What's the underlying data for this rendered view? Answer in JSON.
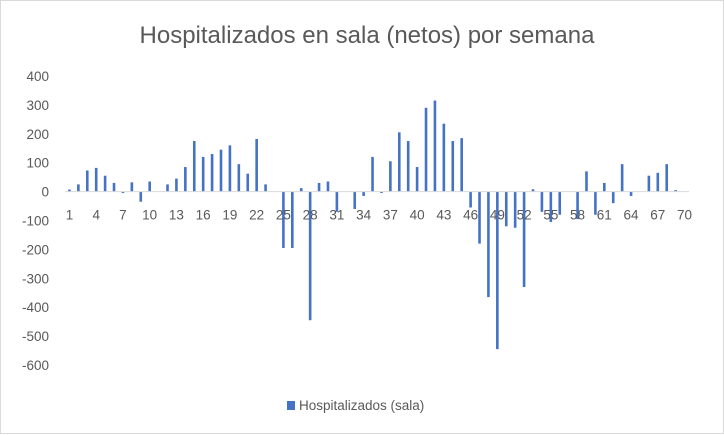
{
  "chart_data": {
    "type": "bar",
    "title": "Hospitalizados en sala (netos) por semana",
    "xlabel": "",
    "ylabel": "",
    "ylim": [
      -600,
      400
    ],
    "yticks": [
      400,
      300,
      200,
      100,
      0,
      -100,
      -200,
      -300,
      -400,
      -500,
      -600
    ],
    "xtick_labels": [
      "1",
      "4",
      "7",
      "10",
      "13",
      "16",
      "19",
      "22",
      "25",
      "28",
      "31",
      "34",
      "37",
      "40",
      "43",
      "46",
      "49",
      "52",
      "55",
      "58",
      "61",
      "64",
      "67",
      "70"
    ],
    "x_tick_step": 3,
    "x_count": 70,
    "grid": false,
    "legend_position": "bottom",
    "bar_color": "#4472c4",
    "series": [
      {
        "name": "Hospitalizados (sala)",
        "values": [
          7,
          25,
          73,
          82,
          55,
          30,
          -5,
          32,
          -35,
          35,
          0,
          25,
          45,
          85,
          175,
          120,
          130,
          145,
          160,
          95,
          62,
          182,
          25,
          0,
          -195,
          -195,
          12,
          -445,
          30,
          35,
          -70,
          0,
          -60,
          -15,
          120,
          -5,
          105,
          205,
          175,
          85,
          290,
          315,
          235,
          175,
          185,
          -55,
          -180,
          -365,
          -545,
          -120,
          -125,
          -330,
          8,
          -70,
          -105,
          -80,
          0,
          -95,
          70,
          -80,
          30,
          -40,
          95,
          -15,
          0,
          55,
          65,
          95,
          5,
          0
        ]
      }
    ]
  }
}
